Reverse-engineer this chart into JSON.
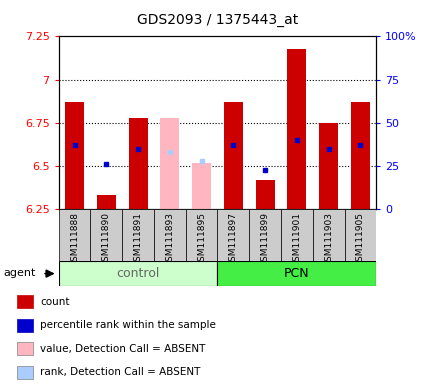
{
  "title": "GDS2093 / 1375443_at",
  "samples": [
    "GSM111888",
    "GSM111890",
    "GSM111891",
    "GSM111893",
    "GSM111895",
    "GSM111897",
    "GSM111899",
    "GSM111901",
    "GSM111903",
    "GSM111905"
  ],
  "bar_bottoms": [
    6.25,
    6.25,
    6.25,
    6.25,
    6.25,
    6.25,
    6.25,
    6.25,
    6.25,
    6.25
  ],
  "bar_tops": [
    6.87,
    6.33,
    6.78,
    6.78,
    6.52,
    6.87,
    6.42,
    7.18,
    6.75,
    6.87
  ],
  "absent_flags": [
    false,
    false,
    false,
    true,
    true,
    false,
    false,
    false,
    false,
    false
  ],
  "percentile_values": [
    6.62,
    6.51,
    6.6,
    6.58,
    6.53,
    6.62,
    6.48,
    6.65,
    6.6,
    6.62
  ],
  "ylim_left": [
    6.25,
    7.25
  ],
  "ylim_right": [
    0,
    100
  ],
  "yticks_left": [
    6.25,
    6.5,
    6.75,
    7.0,
    7.25
  ],
  "ytick_labels_left": [
    "6.25",
    "6.5",
    "6.75",
    "7",
    "7.25"
  ],
  "yticks_right": [
    0,
    25,
    50,
    75,
    100
  ],
  "ytick_labels_right": [
    "0",
    "25",
    "50",
    "75",
    "100%"
  ],
  "bar_color_present": "#CC0000",
  "bar_color_absent": "#FFB6C1",
  "rank_color_present": "#0000CC",
  "rank_color_absent": "#AACCFF",
  "control_bg": "#CCFFCC",
  "pcn_bg": "#44EE44",
  "sample_box_bg": "#CCCCCC",
  "legend_items": [
    {
      "color": "#CC0000",
      "label": "count"
    },
    {
      "color": "#0000CC",
      "label": "percentile rank within the sample"
    },
    {
      "color": "#FFB6C1",
      "label": "value, Detection Call = ABSENT"
    },
    {
      "color": "#AACCFF",
      "label": "rank, Detection Call = ABSENT"
    }
  ]
}
